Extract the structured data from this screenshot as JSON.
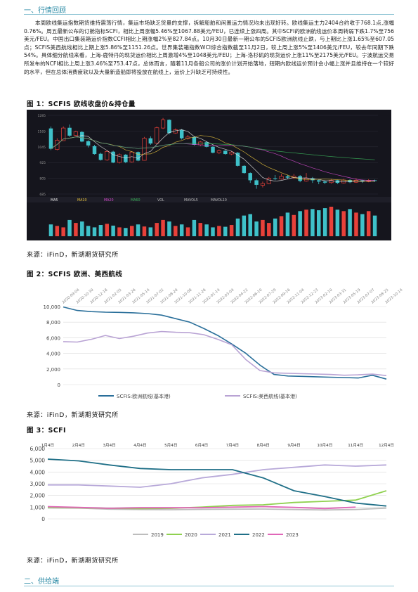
{
  "section1": {
    "title": "一、行情回顾"
  },
  "paragraph": "本周欧线集运指数期货维持震荡行情，集运市场缺乏货量的支撑，拆解船舶和闲置运力情况均未出现好转。欧线集运主力2404合约收于768.1点,涨幅0.76%。周五最新公布的订舱指标SCFI，相比上周涨幅5.46%至1067.88美元/FEU，已连续上涨四周。其中SCFI的欧洲航线运价本周转弱下跌1.7%至756美元/FEU。中国出口集装箱运价指数CCFI相比上期涨幅2%至827.84点。10月30日最新一期公布的SCFIS欧洲航线止跌，与上期比上涨1.65%至607.05点；SCFIS美西航线相比上期上涨5.86%至1151.26点。世界集装箱指数WCI综合指数截至11月2日，较上周上涨5%至1406美元/FEU，较去年同期下跌54%。具体细分航线来看，上海-鹿特丹的现货运价相比上周激增4%至1048美元/FEU；上海-洛杉矶的现货运价上涨11%至2175美元/FEU。宁波航运交易所发布的NCFI相比上周上涨3.46%至753.47点，总体而言，随着11月各船公司的涨价计划开始落地，短期内欧线运价预计会小幅上涨并且维持在一个较好的水平，但在总体消费疲软以及大量新造船即将投放在航线上，运价上升缺乏可持续性。",
  "figures": {
    "fig1": {
      "title": "图 1：SCFIS 欧线收盘价&持仓量",
      "source": "来源：iFinD，新湖期货研究所"
    },
    "fig2": {
      "title": "图 2：SCFIS 欧洲、美西航线",
      "source": "来源：iFinD，新湖期货研究所"
    },
    "fig3": {
      "title": "图 3：SCFI",
      "source": "来源：iFinD，新湖期货研究所"
    }
  },
  "section2": {
    "title": "二、供给端"
  },
  "chart_data": [
    {
      "type": "candlestick",
      "title": "",
      "panel_labels": [
        "MA5",
        "MA10",
        "MA20",
        "MA60",
        "VOL",
        "MAVOL5",
        "MAVOL10"
      ],
      "ma_colors": [
        "#e8e8e8",
        "#e6c23c",
        "#d64bd0",
        "#3bb35a"
      ],
      "up_color": "#e8413a",
      "down_color": "#3fc1c9",
      "candles": [
        {
          "o": 1185,
          "c": 1030,
          "h": 1200,
          "l": 1020
        },
        {
          "o": 1025,
          "c": 1095,
          "h": 1110,
          "l": 1018
        },
        {
          "o": 1092,
          "c": 1188,
          "h": 1200,
          "l": 1090
        },
        {
          "o": 1190,
          "c": 1130,
          "h": 1215,
          "l": 1120
        },
        {
          "o": 1132,
          "c": 1160,
          "h": 1168,
          "l": 1125
        },
        {
          "o": 1158,
          "c": 1085,
          "h": 1165,
          "l": 1080
        },
        {
          "o": 1088,
          "c": 1055,
          "h": 1095,
          "l": 1040
        },
        {
          "o": 1050,
          "c": 990,
          "h": 1060,
          "l": 985
        },
        {
          "o": 992,
          "c": 945,
          "h": 1000,
          "l": 940
        },
        {
          "o": 945,
          "c": 1010,
          "h": 1020,
          "l": 938
        },
        {
          "o": 1008,
          "c": 925,
          "h": 1015,
          "l": 920
        },
        {
          "o": 926,
          "c": 985,
          "h": 995,
          "l": 918
        },
        {
          "o": 985,
          "c": 928,
          "h": 990,
          "l": 920
        },
        {
          "o": 930,
          "c": 1005,
          "h": 1012,
          "l": 925
        },
        {
          "o": 1005,
          "c": 940,
          "h": 1010,
          "l": 935
        },
        {
          "o": 942,
          "c": 1110,
          "h": 1120,
          "l": 940
        },
        {
          "o": 1110,
          "c": 1070,
          "h": 1125,
          "l": 1060
        },
        {
          "o": 1072,
          "c": 1190,
          "h": 1200,
          "l": 1065
        },
        {
          "o": 1188,
          "c": 1250,
          "h": 1265,
          "l": 1180
        },
        {
          "o": 1250,
          "c": 1150,
          "h": 1255,
          "l": 1140
        },
        {
          "o": 1150,
          "c": 1175,
          "h": 1185,
          "l": 1145
        },
        {
          "o": 1175,
          "c": 1110,
          "h": 1180,
          "l": 1100
        },
        {
          "o": 1108,
          "c": 1120,
          "h": 1135,
          "l": 1100
        },
        {
          "o": 1120,
          "c": 1060,
          "h": 1125,
          "l": 1055
        },
        {
          "o": 1060,
          "c": 1082,
          "h": 1090,
          "l": 1050
        },
        {
          "o": 1080,
          "c": 1045,
          "h": 1088,
          "l": 1040
        },
        {
          "o": 1045,
          "c": 1000,
          "h": 1050,
          "l": 995
        },
        {
          "o": 1000,
          "c": 1015,
          "h": 1025,
          "l": 990
        },
        {
          "o": 1015,
          "c": 990,
          "h": 1020,
          "l": 985
        },
        {
          "o": 990,
          "c": 1005,
          "h": 1012,
          "l": 982
        },
        {
          "o": 1000,
          "c": 900,
          "h": 1005,
          "l": 895
        },
        {
          "o": 900,
          "c": 845,
          "h": 905,
          "l": 840
        },
        {
          "o": 845,
          "c": 790,
          "h": 850,
          "l": 770
        },
        {
          "o": 790,
          "c": 755,
          "h": 800,
          "l": 725
        },
        {
          "o": 752,
          "c": 765,
          "h": 780,
          "l": 735
        },
        {
          "o": 765,
          "c": 805,
          "h": 815,
          "l": 760
        },
        {
          "o": 805,
          "c": 800,
          "h": 830,
          "l": 790
        },
        {
          "o": 800,
          "c": 820,
          "h": 840,
          "l": 795
        },
        {
          "o": 820,
          "c": 810,
          "h": 830,
          "l": 798
        },
        {
          "o": 808,
          "c": 822,
          "h": 838,
          "l": 800
        },
        {
          "o": 822,
          "c": 785,
          "h": 830,
          "l": 775
        },
        {
          "o": 785,
          "c": 805,
          "h": 845,
          "l": 780
        },
        {
          "o": 805,
          "c": 790,
          "h": 815,
          "l": 770
        },
        {
          "o": 790,
          "c": 780,
          "h": 795,
          "l": 760
        },
        {
          "o": 780,
          "c": 772,
          "h": 790,
          "l": 760
        },
        {
          "o": 772,
          "c": 790,
          "h": 800,
          "l": 765
        },
        {
          "o": 790,
          "c": 770,
          "h": 795,
          "l": 762
        },
        {
          "o": 770,
          "c": 792,
          "h": 800,
          "l": 765
        },
        {
          "o": 792,
          "c": 775,
          "h": 798,
          "l": 768
        },
        {
          "o": 775,
          "c": 790,
          "h": 805,
          "l": 770
        },
        {
          "o": 790,
          "c": 780,
          "h": 795,
          "l": 770
        },
        {
          "o": 780,
          "c": 790,
          "h": 798,
          "l": 775
        },
        {
          "o": 790,
          "c": 785,
          "h": 795,
          "l": 778
        }
      ],
      "volume": [
        40,
        35,
        30,
        55,
        45,
        50,
        35,
        30,
        38,
        42,
        36,
        30,
        28,
        35,
        40,
        33,
        30,
        45,
        55,
        50,
        35,
        40,
        30,
        55,
        45,
        40,
        30,
        35,
        32,
        38,
        60,
        70,
        75,
        50,
        55,
        45,
        60,
        68,
        80,
        72,
        85,
        90,
        92,
        88,
        95,
        100,
        90,
        85,
        92,
        80,
        75,
        85,
        70
      ]
    },
    {
      "type": "line",
      "title": "",
      "x": [
        "2020-09-04",
        "2020-10-30",
        "2020-12-18",
        "2021-02-05",
        "2021-03-26",
        "2021-05-14",
        "2021-07-02",
        "2021-08-20",
        "2021-10-08",
        "2021-11-26",
        "2022-01-14",
        "2022-03-04",
        "2022-04-22",
        "2022-06-10",
        "2022-07-29",
        "2022-09-16",
        "2022-11-04",
        "2022-12-23",
        "2023-02-10",
        "2023-03-31",
        "2023-05-19",
        "2023-07-07",
        "2023-08-25",
        "2023-10-14"
      ],
      "ylim": [
        0,
        10000
      ],
      "yticks": [
        0,
        2000,
        4000,
        6000,
        8000,
        10000
      ],
      "series": [
        {
          "name": "SCFIS:欧洲航线(基本港)",
          "color": "#2a6f9a",
          "values": [
            9950,
            9500,
            9350,
            9280,
            9250,
            9200,
            9100,
            8900,
            8450,
            8000,
            7200,
            6300,
            5200,
            4000,
            2500,
            1300,
            1100,
            1050,
            1000,
            950,
            900,
            850,
            1200,
            700
          ]
        },
        {
          "name": "SCFIS:美西航线(基本港)",
          "color": "#b9a3d4",
          "values": [
            5500,
            5450,
            5800,
            6300,
            5900,
            6200,
            6600,
            6800,
            6700,
            6650,
            6400,
            5800,
            5100,
            3200,
            1800,
            1500,
            1450,
            1400,
            1350,
            1300,
            1200,
            1250,
            1350,
            1150
          ]
        }
      ]
    },
    {
      "type": "line",
      "title": "",
      "x": [
        "1月4日",
        "2月4日",
        "3月4日",
        "4月4日",
        "5月4日",
        "6月4日",
        "7月4日",
        "8月4日",
        "9月4日",
        "10月4日",
        "11月4日",
        "12月4日"
      ],
      "ylim": [
        0,
        6000
      ],
      "yticks": [
        0,
        1000,
        2000,
        3000,
        4000,
        5000,
        6000
      ],
      "series": [
        {
          "name": "2019",
          "color": "#bdbdbd",
          "values": [
            930,
            920,
            830,
            800,
            780,
            810,
            830,
            840,
            800,
            760,
            800,
            920
          ]
        },
        {
          "name": "2020",
          "color": "#8fd14f",
          "values": [
            1000,
            950,
            900,
            880,
            900,
            1000,
            1150,
            1200,
            1400,
            1500,
            1600,
            2400
          ]
        },
        {
          "name": "2021",
          "color": "#b8a9d9",
          "values": [
            2900,
            2900,
            2800,
            2700,
            3000,
            3500,
            3800,
            4200,
            4400,
            4600,
            4500,
            4600
          ]
        },
        {
          "name": "2022",
          "color": "#1f6f87",
          "values": [
            5100,
            4950,
            4600,
            4300,
            4200,
            4200,
            4200,
            3500,
            2400,
            1900,
            1350,
            1100
          ]
        },
        {
          "name": "2023",
          "color": "#e066b8",
          "values": [
            1050,
            980,
            900,
            950,
            950,
            950,
            1000,
            1050,
            980,
            880,
            1000,
            null
          ]
        }
      ]
    }
  ]
}
